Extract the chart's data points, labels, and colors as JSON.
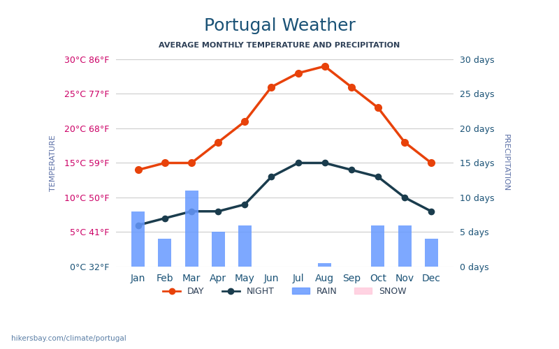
{
  "title": "Portugal Weather",
  "subtitle": "AVERAGE MONTHLY TEMPERATURE AND PRECIPITATION",
  "months": [
    "Jan",
    "Feb",
    "Mar",
    "Apr",
    "May",
    "Jun",
    "Jul",
    "Aug",
    "Sep",
    "Oct",
    "Nov",
    "Dec"
  ],
  "day_temp": [
    14,
    15,
    15,
    18,
    21,
    26,
    28,
    29,
    26,
    23,
    18,
    15
  ],
  "night_temp": [
    6,
    7,
    8,
    8,
    9,
    13,
    15,
    15,
    14,
    13,
    10,
    8
  ],
  "rain_days": [
    8,
    4,
    11,
    5,
    6,
    0,
    0,
    0.5,
    0,
    6,
    6,
    4
  ],
  "left_yticks": [
    0,
    5,
    10,
    15,
    20,
    25,
    30
  ],
  "left_ylabels": [
    "0°C 32°F",
    "5°C 41°F",
    "10°C 50°F",
    "15°C 59°F",
    "20°C 68°F",
    "25°C 77°F",
    "30°C 86°F"
  ],
  "right_yticks": [
    0,
    5,
    10,
    15,
    20,
    25,
    30
  ],
  "right_ylabels": [
    "0 days",
    "5 days",
    "10 days",
    "15 days",
    "20 days",
    "25 days",
    "30 days"
  ],
  "day_color": "#e8420a",
  "night_color": "#1a3c4d",
  "bar_color": "#6699ff",
  "title_color": "#1a5276",
  "subtitle_color": "#2e4057",
  "left_label_color": "#cc0066",
  "left_label_color2": "#33aa33",
  "right_label_color": "#1a5276",
  "temp_axis_label_color": "#5b6fa6",
  "precip_axis_label_color": "#5b6fa6",
  "watermark": "hikersbay.com/climate/portugal",
  "bar_scale": 1.15,
  "ylim": [
    0,
    30
  ]
}
